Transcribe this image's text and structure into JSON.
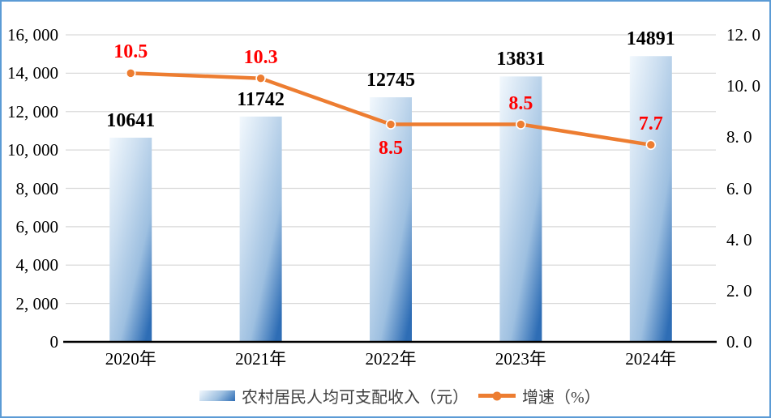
{
  "chart_data": {
    "type": "combo_bar_line",
    "title": "",
    "categories": [
      "2020年",
      "2021年",
      "2022年",
      "2023年",
      "2024年"
    ],
    "series": [
      {
        "name": "农村居民人均可支配收入（元）",
        "chart": "bar",
        "axis": "left",
        "values": [
          10641,
          11742,
          12745,
          13831,
          14891
        ],
        "data_labels": [
          "10641",
          "11742",
          "12745",
          "13831",
          "14891"
        ]
      },
      {
        "name": "增速（%）",
        "chart": "line",
        "axis": "right",
        "values": [
          10.5,
          10.3,
          8.5,
          8.5,
          7.7
        ],
        "data_labels": [
          "10.5",
          "10.3",
          "8.5",
          "8.5",
          "7.7"
        ],
        "label_placement": [
          "above",
          "above",
          "below",
          "above",
          "above"
        ]
      }
    ],
    "left_axis": {
      "min": 0,
      "max": 16000,
      "step": 2000,
      "tick_labels": [
        "0",
        "2, 000",
        "4, 000",
        "6, 000",
        "8, 000",
        "10, 000",
        "12, 000",
        "14, 000",
        "16, 000"
      ]
    },
    "right_axis": {
      "min": 0,
      "max": 12,
      "step": 2,
      "tick_labels": [
        "0. 0",
        "2. 0",
        "4. 0",
        "6. 0",
        "8. 0",
        "10. 0",
        "12. 0"
      ]
    },
    "gridlines": true,
    "legend_position": "bottom"
  },
  "colors": {
    "frame_border": "#5B9BD5",
    "background": "#FFFFFF",
    "bar_gradient_top": "#F2F8FD",
    "bar_gradient_mid": "#9DBFE0",
    "bar_gradient_bottom": "#2E6DB5",
    "line": "#ED7D31",
    "marker_ring": "#FFFFFF",
    "bar_value_label": "#000000",
    "line_value_label": "#FF0000",
    "axis_text": "#000000",
    "gridline": "#D9D9D9",
    "axis_line": "#000000",
    "legend_text": "#404040"
  }
}
